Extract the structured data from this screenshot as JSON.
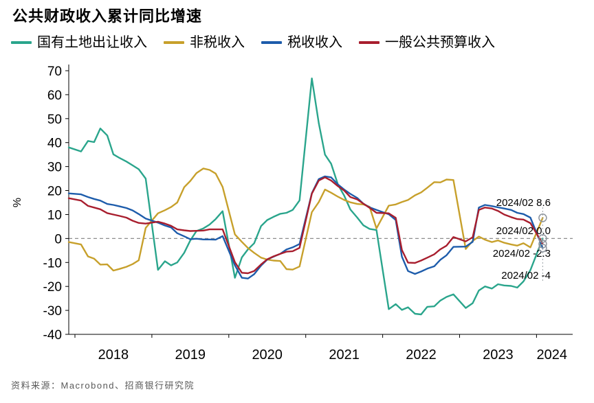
{
  "title": "公共财政收入累计同比增速",
  "source": "资料来源：Macrobond、招商银行研究院",
  "chart_data": {
    "type": "line",
    "title": "公共财政收入累计同比增速",
    "ylabel": "%",
    "ylim": [
      -40,
      70
    ],
    "ytick_step": 10,
    "xlim": [
      2017.92,
      2024.47
    ],
    "zero_line": "dashed",
    "legend_position": "top",
    "x_labels": [
      {
        "label": "2018",
        "x": 2018.5
      },
      {
        "label": "2019",
        "x": 2019.5
      },
      {
        "label": "2020",
        "x": 2020.5
      },
      {
        "label": "2021",
        "x": 2021.5
      },
      {
        "label": "2022",
        "x": 2022.5
      },
      {
        "label": "2023",
        "x": 2023.5
      },
      {
        "label": "2024",
        "x": 2024.2
      }
    ],
    "series": [
      {
        "name": "国有土地出让收入",
        "color": "#2aa58c",
        "points": [
          [
            2017.92,
            38
          ],
          [
            2018.08,
            36.3
          ],
          [
            2018.17,
            40.7
          ],
          [
            2018.25,
            40.2
          ],
          [
            2018.33,
            45.9
          ],
          [
            2018.42,
            43
          ],
          [
            2018.5,
            35.1
          ],
          [
            2018.58,
            33.6
          ],
          [
            2018.67,
            32.1
          ],
          [
            2018.75,
            30.5
          ],
          [
            2018.83,
            28.9
          ],
          [
            2018.92,
            25
          ],
          [
            2019.08,
            -13.1
          ],
          [
            2019.17,
            -9.5
          ],
          [
            2019.25,
            -11.2
          ],
          [
            2019.33,
            -10
          ],
          [
            2019.42,
            -6
          ],
          [
            2019.5,
            -0.8
          ],
          [
            2019.58,
            3.1
          ],
          [
            2019.67,
            4.2
          ],
          [
            2019.75,
            5.8
          ],
          [
            2019.83,
            8.1
          ],
          [
            2019.92,
            11.4
          ],
          [
            2020.08,
            -16.4
          ],
          [
            2020.17,
            -7.9
          ],
          [
            2020.25,
            -4.5
          ],
          [
            2020.33,
            -2
          ],
          [
            2020.42,
            5.2
          ],
          [
            2020.5,
            7.7
          ],
          [
            2020.58,
            9
          ],
          [
            2020.67,
            10.3
          ],
          [
            2020.75,
            10.7
          ],
          [
            2020.83,
            11.9
          ],
          [
            2020.92,
            15.9
          ],
          [
            2021.08,
            66.8
          ],
          [
            2021.17,
            48.1
          ],
          [
            2021.25,
            35
          ],
          [
            2021.33,
            31.2
          ],
          [
            2021.42,
            22.4
          ],
          [
            2021.5,
            17.9
          ],
          [
            2021.58,
            12.1
          ],
          [
            2021.67,
            8.7
          ],
          [
            2021.75,
            5.5
          ],
          [
            2021.83,
            4
          ],
          [
            2021.92,
            3.5
          ],
          [
            2022.08,
            -29.5
          ],
          [
            2022.17,
            -27.4
          ],
          [
            2022.25,
            -29.8
          ],
          [
            2022.33,
            -28.7
          ],
          [
            2022.42,
            -31.4
          ],
          [
            2022.5,
            -31.7
          ],
          [
            2022.58,
            -28.5
          ],
          [
            2022.67,
            -28.3
          ],
          [
            2022.75,
            -25.9
          ],
          [
            2022.83,
            -24.4
          ],
          [
            2022.92,
            -23.3
          ],
          [
            2023.08,
            -29
          ],
          [
            2023.17,
            -27
          ],
          [
            2023.25,
            -21.7
          ],
          [
            2023.33,
            -20
          ],
          [
            2023.42,
            -20.9
          ],
          [
            2023.5,
            -19.1
          ],
          [
            2023.58,
            -19.6
          ],
          [
            2023.67,
            -19.8
          ],
          [
            2023.75,
            -20.5
          ],
          [
            2023.83,
            -17.9
          ],
          [
            2023.92,
            -13.2
          ],
          [
            2024.08,
            0
          ]
        ]
      },
      {
        "name": "非税收入",
        "color": "#c7a02b",
        "points": [
          [
            2017.92,
            -1.5
          ],
          [
            2018.08,
            -2.5
          ],
          [
            2018.17,
            -7.5
          ],
          [
            2018.25,
            -8.4
          ],
          [
            2018.33,
            -10.9
          ],
          [
            2018.42,
            -10.8
          ],
          [
            2018.5,
            -13.4
          ],
          [
            2018.58,
            -12.7
          ],
          [
            2018.67,
            -11.8
          ],
          [
            2018.75,
            -10.7
          ],
          [
            2018.83,
            -9.1
          ],
          [
            2018.92,
            4.4
          ],
          [
            2019.08,
            10.5
          ],
          [
            2019.17,
            11.8
          ],
          [
            2019.25,
            13.1
          ],
          [
            2019.33,
            15
          ],
          [
            2019.42,
            21.4
          ],
          [
            2019.5,
            24
          ],
          [
            2019.58,
            27.3
          ],
          [
            2019.67,
            29.2
          ],
          [
            2019.75,
            28.6
          ],
          [
            2019.83,
            27.1
          ],
          [
            2019.92,
            21.5
          ],
          [
            2020.08,
            1.7
          ],
          [
            2020.17,
            -1.4
          ],
          [
            2020.25,
            -4
          ],
          [
            2020.33,
            -6
          ],
          [
            2020.42,
            -8
          ],
          [
            2020.5,
            -8.8
          ],
          [
            2020.58,
            -9.2
          ],
          [
            2020.67,
            -9.4
          ],
          [
            2020.75,
            -12.8
          ],
          [
            2020.83,
            -13
          ],
          [
            2020.92,
            -11.7
          ],
          [
            2021.08,
            11
          ],
          [
            2021.17,
            15.2
          ],
          [
            2021.25,
            20.4
          ],
          [
            2021.33,
            19.1
          ],
          [
            2021.42,
            17.4
          ],
          [
            2021.5,
            16.1
          ],
          [
            2021.58,
            15.1
          ],
          [
            2021.67,
            14.4
          ],
          [
            2021.75,
            14.2
          ],
          [
            2021.83,
            13.2
          ],
          [
            2021.92,
            4.2
          ],
          [
            2022.08,
            13.7
          ],
          [
            2022.17,
            14.2
          ],
          [
            2022.25,
            15.2
          ],
          [
            2022.33,
            16.1
          ],
          [
            2022.42,
            18
          ],
          [
            2022.5,
            19.2
          ],
          [
            2022.58,
            21.2
          ],
          [
            2022.67,
            23.5
          ],
          [
            2022.75,
            23.4
          ],
          [
            2022.83,
            24.6
          ],
          [
            2022.92,
            24.4
          ],
          [
            2023.08,
            -4.4
          ],
          [
            2023.17,
            -1
          ],
          [
            2023.25,
            0.8
          ],
          [
            2023.33,
            -0.5
          ],
          [
            2023.42,
            -1.5
          ],
          [
            2023.5,
            -0.8
          ],
          [
            2023.58,
            -1.8
          ],
          [
            2023.67,
            -2.5
          ],
          [
            2023.75,
            -3
          ],
          [
            2023.83,
            -2
          ],
          [
            2023.92,
            -3.7
          ],
          [
            2024.08,
            8.6
          ]
        ]
      },
      {
        "name": "税收收入",
        "color": "#1d5cab",
        "points": [
          [
            2017.92,
            18.8
          ],
          [
            2018.08,
            18.4
          ],
          [
            2018.17,
            17.3
          ],
          [
            2018.25,
            16.5
          ],
          [
            2018.33,
            15.8
          ],
          [
            2018.42,
            14.4
          ],
          [
            2018.5,
            14
          ],
          [
            2018.58,
            13.4
          ],
          [
            2018.67,
            12.7
          ],
          [
            2018.75,
            11.7
          ],
          [
            2018.83,
            10.2
          ],
          [
            2018.92,
            8.3
          ],
          [
            2019.08,
            6.6
          ],
          [
            2019.17,
            5.4
          ],
          [
            2019.25,
            4.6
          ],
          [
            2019.33,
            2.2
          ],
          [
            2019.42,
            0.9
          ],
          [
            2019.5,
            -0.3
          ],
          [
            2019.58,
            -0.1
          ],
          [
            2019.67,
            -0.4
          ],
          [
            2019.75,
            -0.4
          ],
          [
            2019.83,
            -0.5
          ],
          [
            2019.92,
            1
          ],
          [
            2020.08,
            -11.2
          ],
          [
            2020.17,
            -16.4
          ],
          [
            2020.25,
            -16.7
          ],
          [
            2020.33,
            -14.9
          ],
          [
            2020.42,
            -11.3
          ],
          [
            2020.5,
            -8.8
          ],
          [
            2020.58,
            -7.6
          ],
          [
            2020.67,
            -6.4
          ],
          [
            2020.75,
            -4.6
          ],
          [
            2020.83,
            -3.7
          ],
          [
            2020.92,
            -2.3
          ],
          [
            2021.08,
            18.9
          ],
          [
            2021.17,
            24.8
          ],
          [
            2021.25,
            25.9
          ],
          [
            2021.33,
            25.5
          ],
          [
            2021.42,
            22.5
          ],
          [
            2021.5,
            20.4
          ],
          [
            2021.58,
            18.6
          ],
          [
            2021.67,
            16.9
          ],
          [
            2021.75,
            14.5
          ],
          [
            2021.83,
            13
          ],
          [
            2021.92,
            11.9
          ],
          [
            2022.08,
            10.1
          ],
          [
            2022.17,
            7.7
          ],
          [
            2022.25,
            -7.6
          ],
          [
            2022.33,
            -13.6
          ],
          [
            2022.42,
            -14.8
          ],
          [
            2022.5,
            -13.8
          ],
          [
            2022.58,
            -12.6
          ],
          [
            2022.67,
            -11.6
          ],
          [
            2022.75,
            -8.9
          ],
          [
            2022.83,
            -7
          ],
          [
            2022.92,
            -3.5
          ],
          [
            2023.08,
            -3.4
          ],
          [
            2023.17,
            -1.4
          ],
          [
            2023.25,
            12.9
          ],
          [
            2023.33,
            14
          ],
          [
            2023.42,
            13.5
          ],
          [
            2023.5,
            13
          ],
          [
            2023.58,
            12.5
          ],
          [
            2023.67,
            11.9
          ],
          [
            2023.75,
            10.7
          ],
          [
            2023.83,
            10.2
          ],
          [
            2023.92,
            8.7
          ],
          [
            2024.08,
            -4
          ]
        ]
      },
      {
        "name": "一般公共预算收入",
        "color": "#a81e2e",
        "points": [
          [
            2017.92,
            16.8
          ],
          [
            2018.08,
            15.8
          ],
          [
            2018.17,
            13.6
          ],
          [
            2018.25,
            12.9
          ],
          [
            2018.33,
            12.2
          ],
          [
            2018.42,
            10.6
          ],
          [
            2018.5,
            10
          ],
          [
            2018.58,
            9.4
          ],
          [
            2018.67,
            8.7
          ],
          [
            2018.75,
            7.4
          ],
          [
            2018.83,
            6.5
          ],
          [
            2018.92,
            6.2
          ],
          [
            2019.08,
            7
          ],
          [
            2019.17,
            6.2
          ],
          [
            2019.25,
            5.3
          ],
          [
            2019.33,
            3.8
          ],
          [
            2019.42,
            3.4
          ],
          [
            2019.5,
            3.1
          ],
          [
            2019.58,
            3.2
          ],
          [
            2019.67,
            3.3
          ],
          [
            2019.75,
            3.8
          ],
          [
            2019.83,
            3.8
          ],
          [
            2019.92,
            3.8
          ],
          [
            2020.08,
            -9.9
          ],
          [
            2020.17,
            -14.3
          ],
          [
            2020.25,
            -14.5
          ],
          [
            2020.33,
            -13.6
          ],
          [
            2020.42,
            -10.8
          ],
          [
            2020.5,
            -8.7
          ],
          [
            2020.58,
            -7.5
          ],
          [
            2020.67,
            -6.4
          ],
          [
            2020.75,
            -5.5
          ],
          [
            2020.83,
            -5.3
          ],
          [
            2020.92,
            -3.9
          ],
          [
            2021.08,
            18.7
          ],
          [
            2021.17,
            24.2
          ],
          [
            2021.25,
            25.5
          ],
          [
            2021.33,
            24.2
          ],
          [
            2021.42,
            21.8
          ],
          [
            2021.5,
            20
          ],
          [
            2021.58,
            17.3
          ],
          [
            2021.67,
            16.3
          ],
          [
            2021.75,
            14.5
          ],
          [
            2021.83,
            12.8
          ],
          [
            2021.92,
            10.7
          ],
          [
            2022.08,
            10.5
          ],
          [
            2022.17,
            8.6
          ],
          [
            2022.25,
            -4.8
          ],
          [
            2022.33,
            -10.1
          ],
          [
            2022.42,
            -10.2
          ],
          [
            2022.5,
            -9.2
          ],
          [
            2022.58,
            -8
          ],
          [
            2022.67,
            -6.6
          ],
          [
            2022.75,
            -4.5
          ],
          [
            2022.83,
            -3
          ],
          [
            2022.92,
            0.6
          ],
          [
            2023.08,
            -1.2
          ],
          [
            2023.17,
            0.5
          ],
          [
            2023.25,
            11.9
          ],
          [
            2023.33,
            12.9
          ],
          [
            2023.42,
            12.5
          ],
          [
            2023.5,
            11.5
          ],
          [
            2023.58,
            10
          ],
          [
            2023.67,
            8.9
          ],
          [
            2023.75,
            8.1
          ],
          [
            2023.83,
            7.9
          ],
          [
            2023.92,
            6.4
          ],
          [
            2024.08,
            -2.3
          ]
        ]
      }
    ],
    "end_annotations": [
      {
        "text": "2024/02 8.6",
        "series": "非税收入",
        "value": 8.6
      },
      {
        "text": "2024/02 0.0",
        "series": "国有土地出让收入",
        "value": 0.0
      },
      {
        "text": "2024/02 -2.3",
        "series": "一般公共预算收入",
        "value": -2.3
      },
      {
        "text": "2024/02 -4",
        "series": "税收收入",
        "value": -4
      }
    ]
  }
}
